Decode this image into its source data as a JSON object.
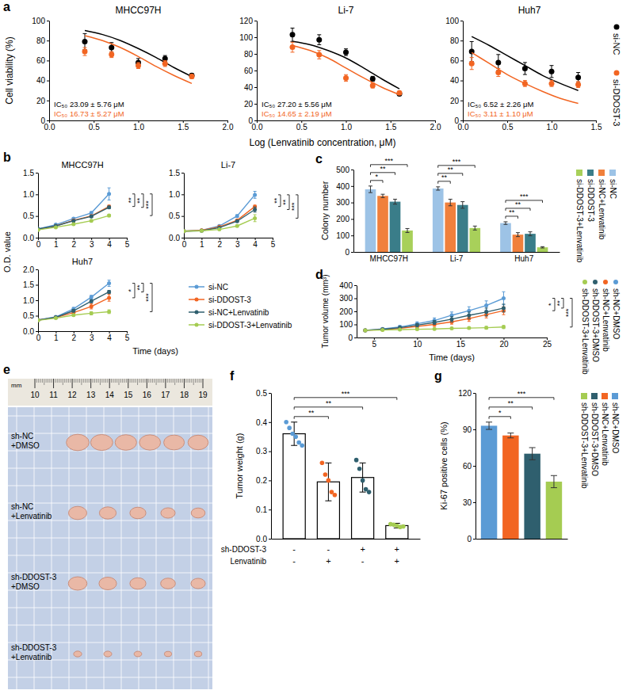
{
  "chart_data": [
    {
      "panel_label": "a",
      "type": "scatter",
      "x_label": "Log (Lenvatinib concentration, μM)",
      "y_label": "Cell viability (%)",
      "legend": "right",
      "groups": [
        {
          "name": "si-NC",
          "color": "#000000"
        },
        {
          "name": "si-DDOST-3",
          "color": "#f26522"
        }
      ],
      "subplots": [
        {
          "title": "MHCC97H",
          "x": [
            0.4,
            0.7,
            1.0,
            1.3,
            1.6
          ],
          "xlim": [
            0,
            2
          ],
          "xticks": [
            {
              "value": 0,
              "label": "0.0"
            },
            0.5,
            {
              "value": 1,
              "label": "1.0"
            },
            1.5,
            {
              "value": 2,
              "label": "2.0"
            }
          ],
          "ylim": [
            0,
            100
          ],
          "yticks": [
            0,
            20,
            40,
            60,
            80,
            100
          ],
          "fit_x": [
            0.4,
            0.6,
            0.8,
            1.0,
            1.2,
            1.4,
            1.6
          ],
          "series": [
            {
              "values": [
                79,
                73,
                58,
                62,
                45
              ],
              "errors": [
                8,
                5,
                4,
                3,
                2
              ],
              "fit": [
                90,
                86,
                80,
                72,
                63,
                53,
                44
              ],
              "annotation": "IC₅₀ 23.09 ± 5.76 μM"
            },
            {
              "values": [
                69,
                66,
                55,
                57,
                44
              ],
              "errors": [
                4,
                3,
                3,
                3,
                2
              ],
              "fit": [
                85,
                80,
                73,
                64,
                54,
                45,
                37
              ],
              "annotation": "IC₅₀ 16.73 ± 5.27 μM"
            }
          ]
        },
        {
          "title": "Li-7",
          "x": [
            0.4,
            0.7,
            1.0,
            1.3,
            1.6
          ],
          "xlim": [
            0,
            2
          ],
          "xticks": [
            {
              "value": 0,
              "label": "0.0"
            },
            0.5,
            {
              "value": 1,
              "label": "1.0"
            },
            1.5,
            {
              "value": 2,
              "label": "2.0"
            }
          ],
          "ylim": [
            0,
            120
          ],
          "yticks": [
            0,
            20,
            40,
            60,
            80,
            100,
            120
          ],
          "fit_x": [
            0.4,
            0.6,
            0.8,
            1.0,
            1.2,
            1.4,
            1.6
          ],
          "series": [
            {
              "values": [
                103,
                97,
                82,
                50,
                32
              ],
              "errors": [
                8,
                6,
                4,
                3,
                2
              ],
              "fit": [
                95,
                91,
                84,
                75,
                63,
                50,
                38
              ],
              "annotation": "IC₅₀ 27.20 ± 5.56 μM"
            },
            {
              "values": [
                88,
                79,
                51,
                42,
                33
              ],
              "errors": [
                6,
                5,
                4,
                3,
                2
              ],
              "fit": [
                90,
                84,
                75,
                63,
                51,
                40,
                31
              ],
              "annotation": "IC₅₀ 14.65 ± 2.19 μM"
            }
          ]
        },
        {
          "title": "Huh7",
          "x": [
            0.1,
            0.4,
            0.7,
            1.0,
            1.3
          ],
          "xlim": [
            0,
            1.5
          ],
          "xticks": [
            {
              "value": 0,
              "label": "0.0"
            },
            0.5,
            {
              "value": 1,
              "label": "1.0"
            },
            1.5
          ],
          "ylim": [
            0,
            100
          ],
          "yticks": [
            0,
            20,
            40,
            60,
            80,
            100
          ],
          "fit_x": [
            0.1,
            0.3,
            0.5,
            0.7,
            0.9,
            1.1,
            1.3
          ],
          "series": [
            {
              "values": [
                69,
                58,
                52,
                49,
                43
              ],
              "errors": [
                10,
                8,
                6,
                6,
                5
              ],
              "fit": [
                84,
                75,
                65,
                55,
                45,
                37,
                30
              ],
              "annotation": "IC₅₀ 6.52 ± 2.26 μM"
            },
            {
              "values": [
                57,
                48,
                37,
                37,
                36
              ],
              "errors": [
                6,
                4,
                3,
                3,
                3
              ],
              "fit": [
                68,
                57,
                46,
                37,
                29,
                22,
                17
              ],
              "annotation": "IC₅₀ 3.11 ± 1.10 μM"
            }
          ]
        }
      ]
    },
    {
      "panel_label": "b",
      "type": "line",
      "x_label": "Time (days)",
      "y_label": "O.D. value",
      "legend": "lower right",
      "x": [
        0,
        1,
        2,
        3,
        4
      ],
      "xlim": [
        0,
        5
      ],
      "xticks": [
        0,
        1,
        2,
        3,
        4,
        5
      ],
      "groups": [
        {
          "name": "si-NC",
          "color": "#5b9bd5"
        },
        {
          "name": "si-DDOST-3",
          "color": "#f26522"
        },
        {
          "name": "si-NC+Lenvatinib",
          "color": "#2f5f6e"
        },
        {
          "name": "si-DDOST-3+Lenvatinib",
          "color": "#a5cc52"
        }
      ],
      "subplots": [
        {
          "title": "MHCC97H",
          "ylim": [
            0,
            1.5
          ],
          "yticks": [
            {
              "value": 0,
              "label": "0.0"
            },
            0.5,
            {
              "value": 1,
              "label": "1.0"
            },
            1.5
          ],
          "series": [
            {
              "values": [
                0.2,
                0.3,
                0.44,
                0.57,
                1.01
              ],
              "errors": [
                0.02,
                0.02,
                0.02,
                0.03,
                0.14
              ]
            },
            {
              "values": [
                0.19,
                0.27,
                0.4,
                0.5,
                0.72
              ],
              "errors": [
                0.01,
                0.02,
                0.02,
                0.02,
                0.03
              ]
            },
            {
              "values": [
                0.2,
                0.27,
                0.39,
                0.49,
                0.7
              ],
              "errors": [
                0.01,
                0.01,
                0.02,
                0.02,
                0.03
              ]
            },
            {
              "values": [
                0.18,
                0.24,
                0.31,
                0.39,
                0.51
              ],
              "errors": [
                0.01,
                0.01,
                0.02,
                0.02,
                0.03
              ]
            }
          ],
          "significance": [
            "**",
            "**",
            "***"
          ]
        },
        {
          "title": "Li-7",
          "ylim": [
            0,
            1.5
          ],
          "yticks": [
            {
              "value": 0,
              "label": "0.0"
            },
            0.5,
            {
              "value": 1,
              "label": "1.0"
            },
            1.5
          ],
          "series": [
            {
              "values": [
                0.15,
                0.17,
                0.27,
                0.5,
                0.99
              ],
              "errors": [
                0.01,
                0.01,
                0.02,
                0.03,
                0.08
              ]
            },
            {
              "values": [
                0.15,
                0.17,
                0.25,
                0.4,
                0.72
              ],
              "errors": [
                0.01,
                0.01,
                0.01,
                0.02,
                0.03
              ]
            },
            {
              "values": [
                0.15,
                0.16,
                0.23,
                0.38,
                0.65
              ],
              "errors": [
                0.01,
                0.01,
                0.01,
                0.02,
                0.06
              ]
            },
            {
              "values": [
                0.15,
                0.16,
                0.19,
                0.27,
                0.45
              ],
              "errors": [
                0.01,
                0.01,
                0.01,
                0.02,
                0.08
              ]
            }
          ],
          "significance": [
            "**",
            "**",
            "***"
          ]
        },
        {
          "title": "Huh7",
          "ylim": [
            0,
            2
          ],
          "yticks": [
            {
              "value": 0,
              "label": "0.0"
            },
            0.5,
            {
              "value": 1,
              "label": "1.0"
            },
            1.5,
            {
              "value": 2,
              "label": "2.0"
            }
          ],
          "series": [
            {
              "values": [
                0.36,
                0.46,
                0.72,
                1.1,
                1.55
              ],
              "errors": [
                0.02,
                0.02,
                0.05,
                0.06,
                0.1
              ]
            },
            {
              "values": [
                0.36,
                0.44,
                0.6,
                0.8,
                1.08
              ],
              "errors": [
                0.02,
                0.02,
                0.05,
                0.08,
                0.11
              ]
            },
            {
              "values": [
                0.36,
                0.45,
                0.66,
                0.97,
                1.27
              ],
              "errors": [
                0.02,
                0.02,
                0.04,
                0.05,
                0.05
              ]
            },
            {
              "values": [
                0.35,
                0.42,
                0.52,
                0.58,
                0.63
              ],
              "errors": [
                0.02,
                0.02,
                0.03,
                0.05,
                0.06
              ]
            }
          ],
          "significance": [
            "*",
            "**",
            "***"
          ]
        }
      ]
    },
    {
      "panel_label": "c",
      "type": "bar",
      "y_label": "Colony number",
      "legend": "right",
      "categories": [
        "MHCC97H",
        "Li-7",
        "Huh7"
      ],
      "ylim": [
        0,
        500
      ],
      "yticks": [
        0,
        100,
        200,
        300,
        400,
        500
      ],
      "series": [
        {
          "name": "si-NC",
          "color": "#9dc3e6",
          "values": [
            380,
            385,
            175
          ],
          "errors": [
            20,
            10,
            8
          ]
        },
        {
          "name": "si-NC+Lenvatinib",
          "color": "#f0803c",
          "values": [
            340,
            300,
            105
          ],
          "errors": [
            10,
            20,
            12
          ]
        },
        {
          "name": "si-DDOST-3",
          "color": "#3a7d89",
          "values": [
            305,
            285,
            110
          ],
          "errors": [
            15,
            20,
            12
          ]
        },
        {
          "name": "si-DDOST-3+Lenvatinib",
          "color": "#a8d05a",
          "values": [
            130,
            145,
            28
          ],
          "errors": [
            12,
            12,
            4
          ]
        }
      ],
      "significance": [
        [
          "*",
          "**",
          "***"
        ],
        [
          "**",
          "**",
          "***"
        ],
        [
          "**",
          "**",
          "***"
        ]
      ]
    },
    {
      "panel_label": "d",
      "type": "line",
      "x_label": "Time (days)",
      "y_label": "Tumor volume (mm³)",
      "legend": "right",
      "x": [
        4,
        6,
        8,
        10,
        12,
        14,
        16,
        18,
        20
      ],
      "xlim": [
        3,
        25
      ],
      "xticks": [
        5,
        10,
        15,
        20,
        25
      ],
      "ylim": [
        0,
        400
      ],
      "yticks": [
        0,
        100,
        200,
        300,
        400
      ],
      "series": [
        {
          "name": "sh-NC+DMSO",
          "color": "#5b9bd5",
          "values": [
            55,
            65,
            80,
            105,
            130,
            170,
            205,
            245,
            300
          ],
          "errors": [
            10,
            10,
            12,
            15,
            20,
            25,
            30,
            35,
            50
          ]
        },
        {
          "name": "sh-NC+Lenvatinib",
          "color": "#f26522",
          "values": [
            55,
            60,
            70,
            85,
            100,
            120,
            145,
            175,
            205
          ],
          "errors": [
            8,
            8,
            10,
            12,
            15,
            18,
            22,
            25,
            30
          ]
        },
        {
          "name": "sh-DDOST-3+DMSO",
          "color": "#2f5f6e",
          "values": [
            55,
            62,
            75,
            95,
            115,
            140,
            170,
            195,
            225
          ],
          "errors": [
            8,
            8,
            10,
            12,
            15,
            20,
            25,
            30,
            30
          ]
        },
        {
          "name": "sh-DDOST-3+Lenvatinib",
          "color": "#a5cc52",
          "values": [
            55,
            57,
            60,
            63,
            65,
            70,
            72,
            75,
            80
          ],
          "errors": [
            5,
            5,
            5,
            6,
            6,
            7,
            8,
            10,
            12
          ]
        }
      ],
      "significance": [
        "*",
        "**",
        "***"
      ]
    },
    {
      "panel_label": "e",
      "type": "image",
      "ruler_unit": "mm",
      "ruler_labels": [
        10,
        11,
        12,
        13,
        14,
        15,
        16,
        17,
        18,
        19
      ],
      "row_labels": [
        "sh-NC +DMSO",
        "sh-NC +Lenvatinib",
        "sh-DDOST-3 +DMSO",
        "sh-DDOST-3 +Lenvatinib"
      ]
    },
    {
      "panel_label": "f",
      "type": "bar",
      "y_label": "Tumor weight (g)",
      "categories": [
        null,
        null,
        null,
        null
      ],
      "condition_rows": [
        {
          "label": "sh-DDOST-3",
          "signs": [
            "-",
            "-",
            "+",
            "+"
          ]
        },
        {
          "label": "Lenvatinib",
          "signs": [
            "-",
            "+",
            "-",
            "+"
          ]
        }
      ],
      "ylim": [
        0,
        0.5
      ],
      "yticks": [
        {
          "value": 0,
          "label": "0.0"
        },
        0.1,
        0.2,
        0.3,
        0.4,
        0.5
      ],
      "values": [
        0.36,
        0.195,
        0.21,
        0.045
      ],
      "errors": [
        0.04,
        0.065,
        0.05,
        0.008
      ],
      "points": [
        [
          0.4,
          0.38,
          0.36,
          0.35,
          0.33,
          0.32
        ],
        [
          0.26,
          0.22,
          0.2,
          0.16,
          0.15
        ],
        [
          0.27,
          0.24,
          0.2,
          0.17,
          0.16
        ],
        [
          0.05,
          0.048,
          0.045,
          0.04,
          0.042
        ]
      ],
      "colors": [
        "#5b9bd5",
        "#f26522",
        "#2f5f6e",
        "#a5cc52"
      ],
      "significance": [
        "**",
        "**",
        "***"
      ]
    },
    {
      "panel_label": "g",
      "type": "bar",
      "y_label": "Ki-67 positive cells (%)",
      "legend": "right",
      "tick_labels": "y",
      "categories": [
        "sh-NC+DMSO",
        "sh-NC+Lenvatinib",
        "sh-DDOST-3+DMSO",
        "sh-DDOST-3+Lenvatinib"
      ],
      "colors": [
        "#5b9bd5",
        "#f26522",
        "#2f5f6e",
        "#a5cc52"
      ],
      "ylim": [
        0,
        120
      ],
      "yticks": [
        0,
        30,
        60,
        90,
        120
      ],
      "values": [
        93,
        85,
        70,
        47
      ],
      "errors": [
        3,
        2,
        5,
        5
      ],
      "significance": [
        "*",
        "**",
        "***"
      ]
    }
  ]
}
